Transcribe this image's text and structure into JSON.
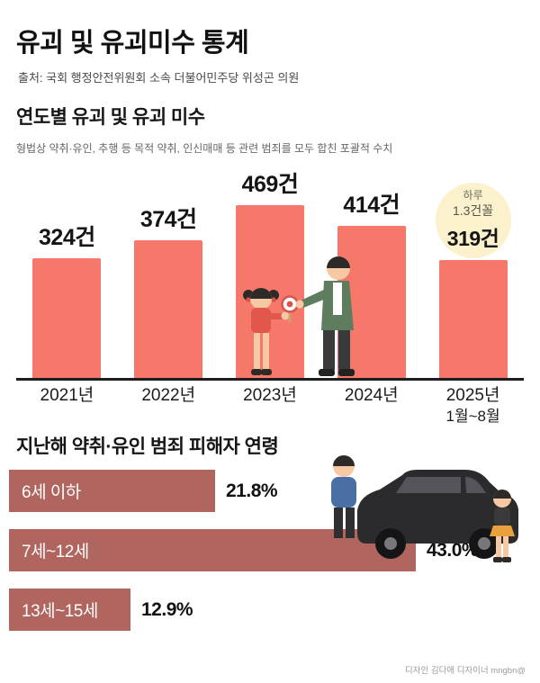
{
  "page": {
    "title": "유괴 및 유괴미수 통계",
    "source": "출처: 국회 행정안전위원회 소속 더불어민주당 위성곤 의원",
    "credit": "디자인 김다애 디자이너 mngbn@"
  },
  "yearly": {
    "heading": "연도별 유괴 및 유괴 미수",
    "subtitle": "형법상 약취·유인, 추행 등 목적 약취, 인신매매 등 관련 범죄를 모두 합친 포괄적 수치"
  },
  "age": {
    "heading": "지난해 약취·유인 범죄 피해자 연령"
  },
  "chart_data": [
    {
      "type": "bar",
      "title": "연도별 유괴 및 유괴 미수",
      "categories": [
        "2021년",
        "2022년",
        "2023년",
        "2024년",
        "2025년"
      ],
      "sub_labels": [
        "",
        "",
        "",
        "",
        "1월~8월"
      ],
      "values": [
        324,
        374,
        469,
        414,
        319
      ],
      "value_labels": [
        "324건",
        "374건",
        "469건",
        "414건",
        "319건"
      ],
      "unit": "건",
      "ylim": [
        0,
        500
      ],
      "grid": false,
      "legend": "none",
      "bar_color": "#F5786A",
      "annotation": {
        "category_index": 4,
        "lines": [
          "하루",
          "1.3건꼴"
        ],
        "bg_color": "#FBF2CD"
      }
    },
    {
      "type": "bar",
      "orientation": "horizontal",
      "title": "지난해 약취·유인 범죄 피해자 연령",
      "categories": [
        "6세 이하",
        "7세~12세",
        "13세~15세"
      ],
      "values": [
        21.8,
        43.0,
        12.9
      ],
      "value_labels": [
        "21.8%",
        "43.0%",
        "12.9%"
      ],
      "unit": "%",
      "xlim": [
        0,
        45
      ],
      "grid": false,
      "bar_color": "#B0655E"
    }
  ],
  "colors": {
    "vertical_bar": "#F5786A",
    "horizontal_bar": "#B0655E",
    "badge_bg": "#FBF2CD",
    "axis": "#1E1E1E"
  }
}
